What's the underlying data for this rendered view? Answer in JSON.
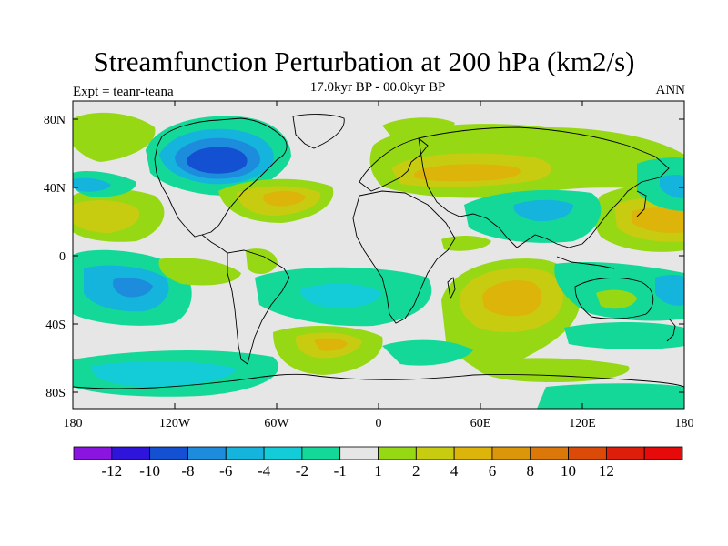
{
  "title": "Streamfunction Perturbation at 200 hPa (km2/s)",
  "subtitle": "17.0kyr BP - 00.0kyr BP",
  "experiment_label": "Expt = teanr-teana",
  "season": "ANN",
  "lat_ticks": [
    {
      "label": "80N"
    },
    {
      "label": "40N"
    },
    {
      "label": "0"
    },
    {
      "label": "40S"
    },
    {
      "label": "80S"
    }
  ],
  "lon_ticks": [
    {
      "label": "180"
    },
    {
      "label": "120W"
    },
    {
      "label": "60W"
    },
    {
      "label": "0"
    },
    {
      "label": "60E"
    },
    {
      "label": "120E"
    },
    {
      "label": "180"
    }
  ],
  "colorbar": {
    "colors": [
      "#8a14e0",
      "#2f14dc",
      "#1450d2",
      "#1e8cdc",
      "#14b4dc",
      "#14ccd8",
      "#14d898",
      "#e6e6e6",
      "#96d814",
      "#c8cc10",
      "#dcb40a",
      "#dc960a",
      "#dc780a",
      "#dc4a0a",
      "#dc1e0a",
      "#e60a0a"
    ],
    "labels": [
      "-12",
      "-10",
      "-8",
      "-6",
      "-4",
      "-2",
      "-1",
      "1",
      "2",
      "4",
      "6",
      "8",
      "10",
      "12"
    ]
  },
  "background_color": "#e6e6e6"
}
